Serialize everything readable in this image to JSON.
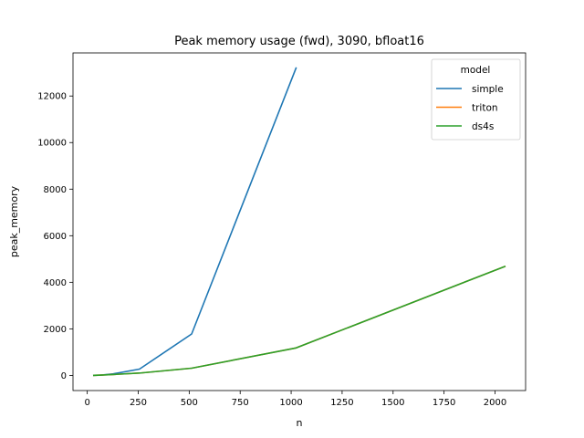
{
  "chart_data": {
    "type": "line",
    "title": "Peak memory usage (fwd), 3090, bfloat16",
    "xlabel": "n",
    "ylabel": "peak_memory",
    "xlim": [
      -70,
      2150
    ],
    "ylim": [
      -650,
      13850
    ],
    "xticks": [
      0,
      250,
      500,
      750,
      1000,
      1250,
      1500,
      1750,
      2000
    ],
    "yticks": [
      0,
      2000,
      4000,
      6000,
      8000,
      10000,
      12000
    ],
    "grid": false,
    "legend": {
      "title": "model",
      "placement": "top-right"
    },
    "series": [
      {
        "name": "simple",
        "color": "#1f77b4",
        "x": [
          32,
          64,
          128,
          256,
          512,
          1024
        ],
        "y": [
          2,
          10,
          70,
          270,
          1780,
          13200
        ]
      },
      {
        "name": "triton",
        "color": "#ff7f0e",
        "x": [
          32,
          64,
          128,
          256,
          512,
          1024,
          2048
        ],
        "y": [
          2,
          15,
          40,
          100,
          310,
          1180,
          4680
        ]
      },
      {
        "name": "ds4s",
        "color": "#2ca02c",
        "x": [
          32,
          64,
          128,
          256,
          512,
          1024,
          2048
        ],
        "y": [
          2,
          15,
          40,
          100,
          310,
          1180,
          4680
        ]
      }
    ]
  }
}
